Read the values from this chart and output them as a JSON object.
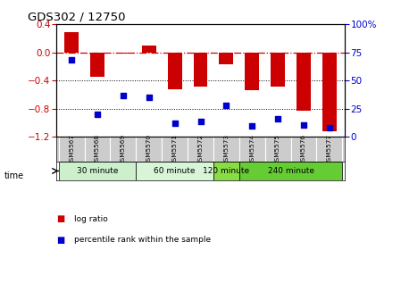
{
  "title": "GDS302 / 12750",
  "samples": [
    "GSM5567",
    "GSM5568",
    "GSM5569",
    "GSM5570",
    "GSM5571",
    "GSM5572",
    "GSM5573",
    "GSM5574",
    "GSM5575",
    "GSM5576",
    "GSM5577"
  ],
  "log_ratio": [
    0.28,
    -0.35,
    -0.02,
    0.09,
    -0.52,
    -0.48,
    -0.17,
    -0.54,
    -0.48,
    -0.83,
    -1.12
  ],
  "percentile": [
    68,
    20,
    37,
    35,
    12,
    14,
    28,
    10,
    16,
    11,
    8
  ],
  "groups": [
    {
      "label": "30 minute",
      "start": 0,
      "end": 3,
      "color": "#ccf0cc"
    },
    {
      "label": "60 minute",
      "start": 3,
      "end": 6,
      "color": "#d8f5d8"
    },
    {
      "label": "120 minute",
      "start": 6,
      "end": 7,
      "color": "#88dd44"
    },
    {
      "label": "240 minute",
      "start": 7,
      "end": 11,
      "color": "#66cc33"
    }
  ],
  "ylim_left": [
    -1.2,
    0.4
  ],
  "ylim_right": [
    0,
    100
  ],
  "yticks_left": [
    -1.2,
    -0.8,
    -0.4,
    0.0,
    0.4
  ],
  "yticks_right": [
    0,
    25,
    50,
    75,
    100
  ],
  "bar_color": "#cc0000",
  "dot_color": "#0000cc",
  "hline_color": "#cc0000",
  "bg_label": "#cccccc",
  "legend_items": [
    {
      "color": "#cc0000",
      "label": "log ratio"
    },
    {
      "color": "#0000cc",
      "label": "percentile rank within the sample"
    }
  ]
}
